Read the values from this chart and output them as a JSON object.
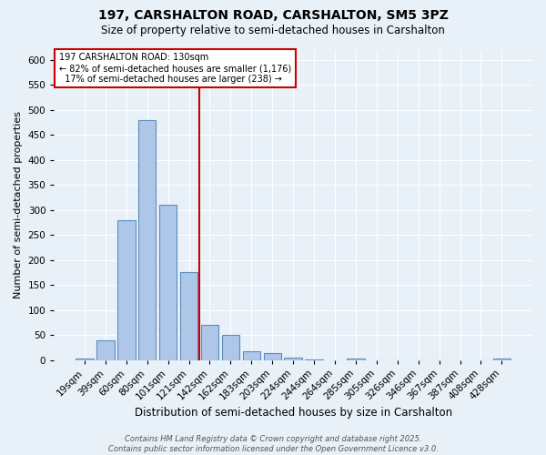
{
  "title": "197, CARSHALTON ROAD, CARSHALTON, SM5 3PZ",
  "subtitle": "Size of property relative to semi-detached houses in Carshalton",
  "xlabel": "Distribution of semi-detached houses by size in Carshalton",
  "ylabel": "Number of semi-detached properties",
  "bar_labels": [
    "19sqm",
    "39sqm",
    "60sqm",
    "80sqm",
    "101sqm",
    "121sqm",
    "142sqm",
    "162sqm",
    "183sqm",
    "203sqm",
    "224sqm",
    "244sqm",
    "264sqm",
    "285sqm",
    "305sqm",
    "326sqm",
    "346sqm",
    "367sqm",
    "387sqm",
    "408sqm",
    "428sqm"
  ],
  "bar_values": [
    2,
    40,
    280,
    480,
    310,
    175,
    70,
    50,
    18,
    13,
    4,
    1,
    0,
    2,
    0,
    0,
    0,
    0,
    0,
    0,
    2
  ],
  "bar_color": "#aec6e8",
  "bar_edge_color": "#5a8fc0",
  "background_color": "#e8f0f8",
  "grid_color": "#ffffff",
  "property_label": "197 CARSHALTON ROAD: 130sqm",
  "pct_smaller": 82,
  "pct_larger": 17,
  "n_smaller": 1176,
  "n_larger": 238,
  "annotation_box_color": "#ffffff",
  "annotation_box_edge": "#cc0000",
  "vline_color": "#cc0000",
  "red_line_index": 5.5,
  "ylim": [
    0,
    620
  ],
  "yticks": [
    0,
    50,
    100,
    150,
    200,
    250,
    300,
    350,
    400,
    450,
    500,
    550,
    600
  ],
  "footnote": "Contains HM Land Registry data © Crown copyright and database right 2025.\nContains public sector information licensed under the Open Government Licence v3.0.",
  "title_fontsize": 10,
  "subtitle_fontsize": 8.5,
  "xlabel_fontsize": 8.5,
  "ylabel_fontsize": 8,
  "tick_fontsize": 7.5,
  "annot_fontsize": 7,
  "footnote_fontsize": 6
}
